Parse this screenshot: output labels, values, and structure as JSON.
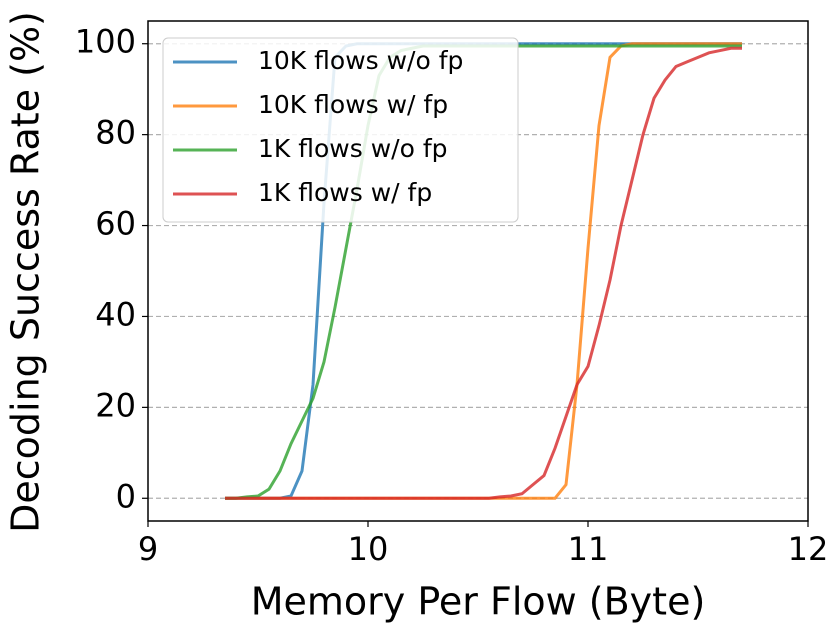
{
  "chart_data": {
    "type": "line",
    "x_label": "Memory Per Flow (Byte)",
    "y_label": "Decoding Success Rate (%)",
    "x": [
      9.35,
      9.4,
      9.45,
      9.5,
      9.55,
      9.6,
      9.65,
      9.7,
      9.75,
      9.8,
      9.85,
      9.9,
      9.95,
      10.0,
      10.05,
      10.1,
      10.15,
      10.2,
      10.25,
      10.3,
      10.35,
      10.4,
      10.45,
      10.5,
      10.55,
      10.6,
      10.65,
      10.7,
      10.75,
      10.8,
      10.85,
      10.9,
      10.95,
      11.0,
      11.05,
      11.1,
      11.15,
      11.2,
      11.25,
      11.3,
      11.35,
      11.4,
      11.45,
      11.5,
      11.55,
      11.6,
      11.65,
      11.7
    ],
    "series": [
      {
        "name": "10K flows w/o fp",
        "color": "#1f77b4",
        "values": [
          0,
          0,
          0,
          0,
          0,
          0,
          0.5,
          6,
          25,
          65,
          97,
          99.5,
          100,
          100,
          100,
          100,
          100,
          100,
          100,
          100,
          100,
          100,
          100,
          100,
          100,
          100,
          100,
          100,
          100,
          100,
          100,
          100,
          100,
          100,
          100,
          100,
          100,
          100,
          100,
          100,
          100,
          100,
          100,
          100,
          100,
          100,
          100,
          100
        ]
      },
      {
        "name": "10K flows w/ fp",
        "color": "#ff7f0e",
        "values": [
          0,
          0,
          0,
          0,
          0,
          0,
          0,
          0,
          0,
          0,
          0,
          0,
          0,
          0,
          0,
          0,
          0,
          0,
          0,
          0,
          0,
          0,
          0,
          0,
          0,
          0,
          0,
          0,
          0,
          0,
          0,
          3,
          25,
          55,
          82,
          97,
          99.5,
          100,
          100,
          100,
          100,
          100,
          100,
          100,
          100,
          100,
          100,
          100
        ]
      },
      {
        "name": "1K flows w/o fp",
        "color": "#2ca02c",
        "values": [
          0,
          0,
          0.3,
          0.5,
          2,
          6,
          12,
          17,
          22,
          30,
          42,
          55,
          68,
          82,
          93,
          97,
          98.5,
          99,
          99.5,
          99.5,
          99.5,
          99.5,
          99.5,
          99.5,
          99.5,
          99.5,
          99.5,
          99.5,
          99.5,
          99.5,
          99.5,
          99.5,
          99.5,
          99.5,
          99.5,
          99.5,
          99.5,
          99.5,
          99.5,
          99.5,
          99.5,
          99.5,
          99.5,
          99.5,
          99.5,
          99.5,
          99.5,
          99.5
        ]
      },
      {
        "name": "1K flows w/ fp",
        "color": "#d62728",
        "values": [
          0,
          0,
          0,
          0,
          0,
          0,
          0,
          0,
          0,
          0,
          0,
          0,
          0,
          0,
          0,
          0,
          0,
          0,
          0,
          0,
          0,
          0,
          0,
          0,
          0,
          0.3,
          0.5,
          1,
          3,
          5,
          11,
          18,
          25,
          29,
          38,
          48,
          60,
          70,
          80,
          88,
          92,
          95,
          96,
          97,
          98,
          98.5,
          99,
          99
        ]
      }
    ],
    "xlim": [
      9,
      12
    ],
    "xticks": [
      9,
      10,
      11,
      12
    ],
    "ylim": [
      -5,
      105
    ],
    "yticks": [
      0,
      20,
      40,
      60,
      80,
      100
    ],
    "grid": true,
    "legend": "upper left"
  }
}
